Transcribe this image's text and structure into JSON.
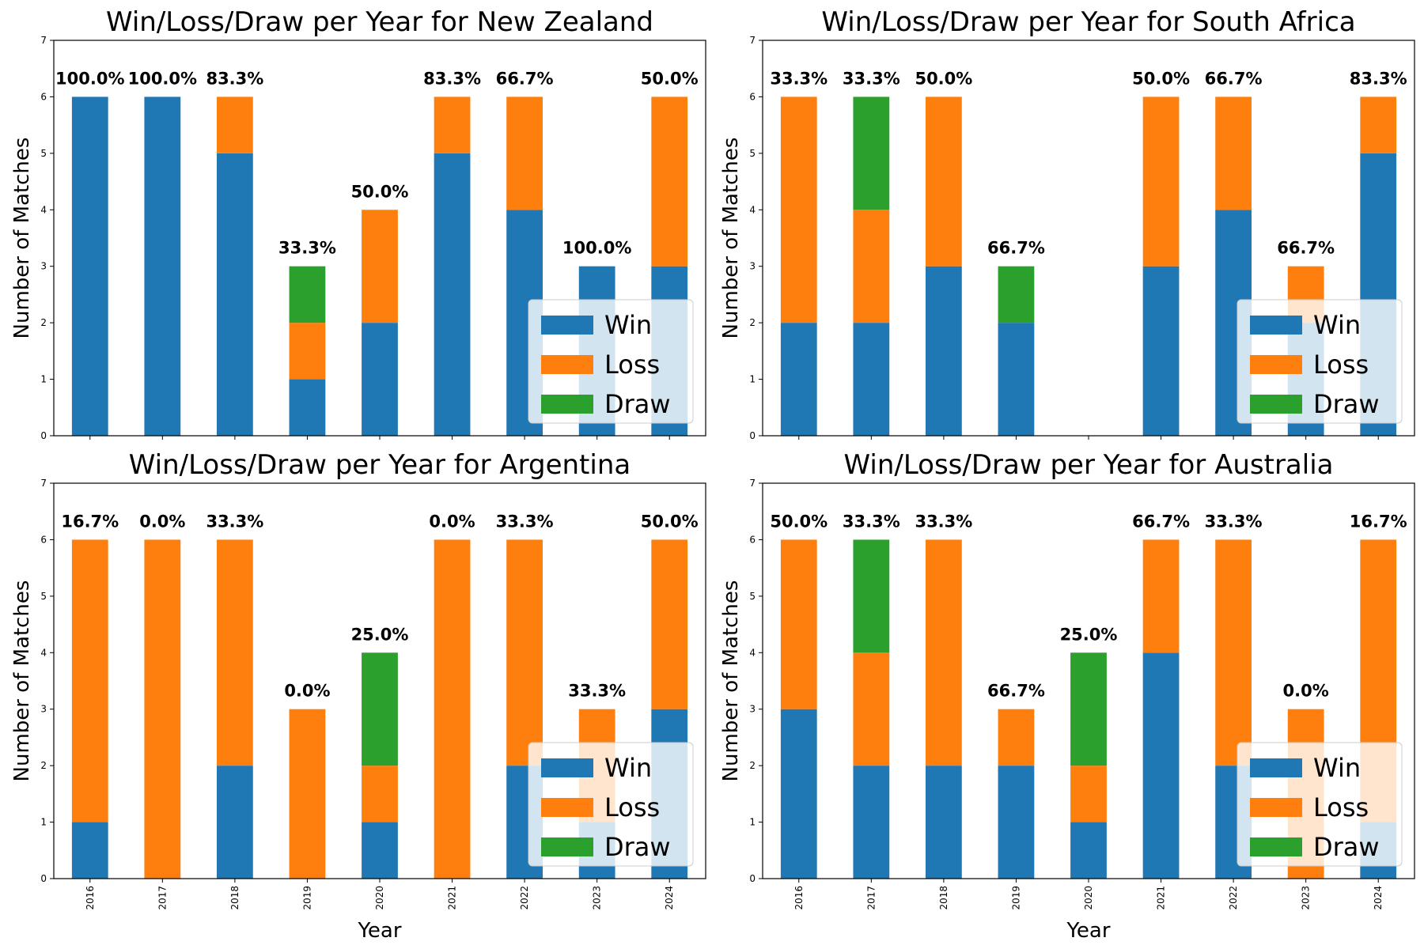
{
  "legend": {
    "entries": [
      {
        "label": "Win",
        "color": "#1f77b4"
      },
      {
        "label": "Loss",
        "color": "#ff7f0e"
      },
      {
        "label": "Draw",
        "color": "#2ca02c"
      }
    ],
    "placement": "lower-right"
  },
  "chart_data": [
    {
      "type": "bar",
      "stacked": true,
      "title": "Win/Loss/Draw per Year for New Zealand",
      "xlabel": "",
      "ylabel": "Number of Matches",
      "ylim": [
        0,
        7
      ],
      "yticks": [
        "0",
        "1",
        "2",
        "3",
        "4",
        "5",
        "6",
        "7"
      ],
      "categories": [
        "2016",
        "2017",
        "2018",
        "2019",
        "2020",
        "2021",
        "2022",
        "2023",
        "2024"
      ],
      "show_xtick_labels": false,
      "series": [
        {
          "name": "Win",
          "color": "#1f77b4",
          "values": [
            6,
            6,
            5,
            1,
            2,
            5,
            4,
            3,
            3
          ]
        },
        {
          "name": "Loss",
          "color": "#ff7f0e",
          "values": [
            0,
            0,
            1,
            1,
            2,
            1,
            2,
            0,
            3
          ]
        },
        {
          "name": "Draw",
          "color": "#2ca02c",
          "values": [
            0,
            0,
            0,
            1,
            0,
            0,
            0,
            0,
            0
          ]
        }
      ],
      "annotations": [
        "100.0%",
        "100.0%",
        "83.3%",
        "33.3%",
        "50.0%",
        "83.3%",
        "66.7%",
        "100.0%",
        "50.0%"
      ],
      "grid": false,
      "legend_placement": "lower-right"
    },
    {
      "type": "bar",
      "stacked": true,
      "title": "Win/Loss/Draw per Year for South Africa",
      "xlabel": "",
      "ylabel": "Number of Matches",
      "ylim": [
        0,
        7
      ],
      "yticks": [
        "0",
        "1",
        "2",
        "3",
        "4",
        "5",
        "6",
        "7"
      ],
      "categories": [
        "2016",
        "2017",
        "2018",
        "2019",
        "2020",
        "2021",
        "2022",
        "2023",
        "2024"
      ],
      "show_xtick_labels": false,
      "series": [
        {
          "name": "Win",
          "color": "#1f77b4",
          "values": [
            2,
            2,
            3,
            2,
            0,
            3,
            4,
            2,
            5
          ]
        },
        {
          "name": "Loss",
          "color": "#ff7f0e",
          "values": [
            4,
            2,
            3,
            0,
            0,
            3,
            2,
            1,
            1
          ]
        },
        {
          "name": "Draw",
          "color": "#2ca02c",
          "values": [
            0,
            2,
            0,
            1,
            0,
            0,
            0,
            0,
            0
          ]
        }
      ],
      "annotations": [
        "33.3%",
        "33.3%",
        "50.0%",
        "66.7%",
        "",
        "50.0%",
        "66.7%",
        "66.7%",
        "83.3%"
      ],
      "grid": false,
      "legend_placement": "lower-right"
    },
    {
      "type": "bar",
      "stacked": true,
      "title": "Win/Loss/Draw per Year for Argentina",
      "xlabel": "Year",
      "ylabel": "Number of Matches",
      "ylim": [
        0,
        7
      ],
      "yticks": [
        "0",
        "1",
        "2",
        "3",
        "4",
        "5",
        "6",
        "7"
      ],
      "categories": [
        "2016",
        "2017",
        "2018",
        "2019",
        "2020",
        "2021",
        "2022",
        "2023",
        "2024"
      ],
      "show_xtick_labels": true,
      "series": [
        {
          "name": "Win",
          "color": "#1f77b4",
          "values": [
            1,
            0,
            2,
            0,
            1,
            0,
            2,
            1,
            3
          ]
        },
        {
          "name": "Loss",
          "color": "#ff7f0e",
          "values": [
            5,
            6,
            4,
            3,
            1,
            6,
            4,
            2,
            3
          ]
        },
        {
          "name": "Draw",
          "color": "#2ca02c",
          "values": [
            0,
            0,
            0,
            0,
            2,
            0,
            0,
            0,
            0
          ]
        }
      ],
      "annotations": [
        "16.7%",
        "0.0%",
        "33.3%",
        "0.0%",
        "25.0%",
        "0.0%",
        "33.3%",
        "33.3%",
        "50.0%"
      ],
      "grid": false,
      "legend_placement": "lower-right"
    },
    {
      "type": "bar",
      "stacked": true,
      "title": "Win/Loss/Draw per Year for Australia",
      "xlabel": "Year",
      "ylabel": "Number of Matches",
      "ylim": [
        0,
        7
      ],
      "yticks": [
        "0",
        "1",
        "2",
        "3",
        "4",
        "5",
        "6",
        "7"
      ],
      "categories": [
        "2016",
        "2017",
        "2018",
        "2019",
        "2020",
        "2021",
        "2022",
        "2023",
        "2024"
      ],
      "show_xtick_labels": true,
      "series": [
        {
          "name": "Win",
          "color": "#1f77b4",
          "values": [
            3,
            2,
            2,
            2,
            1,
            4,
            2,
            0,
            1
          ]
        },
        {
          "name": "Loss",
          "color": "#ff7f0e",
          "values": [
            3,
            2,
            4,
            1,
            1,
            2,
            4,
            3,
            5
          ]
        },
        {
          "name": "Draw",
          "color": "#2ca02c",
          "values": [
            0,
            2,
            0,
            0,
            2,
            0,
            0,
            0,
            0
          ]
        }
      ],
      "annotations": [
        "50.0%",
        "33.3%",
        "33.3%",
        "66.7%",
        "25.0%",
        "66.7%",
        "33.3%",
        "0.0%",
        "16.7%"
      ],
      "grid": false,
      "legend_placement": "lower-right"
    }
  ]
}
